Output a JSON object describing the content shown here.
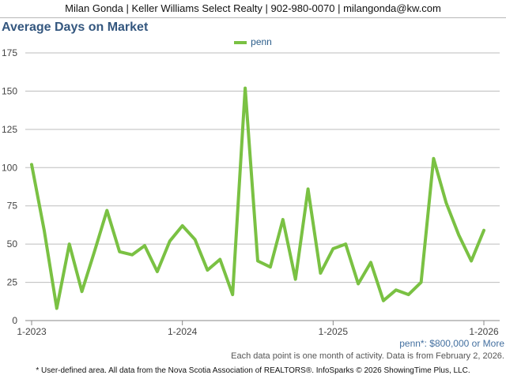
{
  "header": {
    "contact": "Milan Gonda | Keller Williams Select Realty | 902-980-0070 | milangonda@kw.com"
  },
  "footer": {
    "area_note": "penn*: $800,000 or More",
    "data_note": "Each data point is one month of activity. Data is from February 2, 2026.",
    "disclaimer": "* User-defined area. All data from the Nova Scotia Association of REALTORS®. InfoSparks © 2026 ShowingTime Plus, LLC."
  },
  "chart_data": {
    "type": "line",
    "title": "Average Days on Market",
    "xlabel": "",
    "ylabel": "",
    "ylim": [
      0,
      175
    ],
    "yticks": [
      "0",
      "25",
      "50",
      "75",
      "100",
      "125",
      "150",
      "175"
    ],
    "xticks": [
      "1-2023",
      "1-2024",
      "1-2025",
      "1-2026"
    ],
    "grid": true,
    "legend_position": "top-center",
    "series": [
      {
        "name": "penn",
        "color": "#7ac143",
        "x": [
          "2023-01",
          "2023-02",
          "2023-03",
          "2023-04",
          "2023-05",
          "2023-06",
          "2023-07",
          "2023-08",
          "2023-09",
          "2023-10",
          "2023-11",
          "2023-12",
          "2024-01",
          "2024-02",
          "2024-03",
          "2024-04",
          "2024-05",
          "2024-06",
          "2024-07",
          "2024-08",
          "2024-09",
          "2024-10",
          "2024-11",
          "2024-12",
          "2025-01",
          "2025-02",
          "2025-03",
          "2025-04",
          "2025-05",
          "2025-06",
          "2025-07",
          "2025-08",
          "2025-09",
          "2025-10",
          "2025-11",
          "2025-12",
          "2026-01"
        ],
        "values": [
          102,
          59,
          8,
          50,
          19,
          45,
          72,
          45,
          43,
          49,
          32,
          52,
          62,
          53,
          33,
          40,
          17,
          152,
          39,
          35,
          66,
          27,
          86,
          31,
          47,
          50,
          24,
          38,
          13,
          20,
          17,
          25,
          106,
          77,
          56,
          39,
          59
        ]
      }
    ]
  }
}
